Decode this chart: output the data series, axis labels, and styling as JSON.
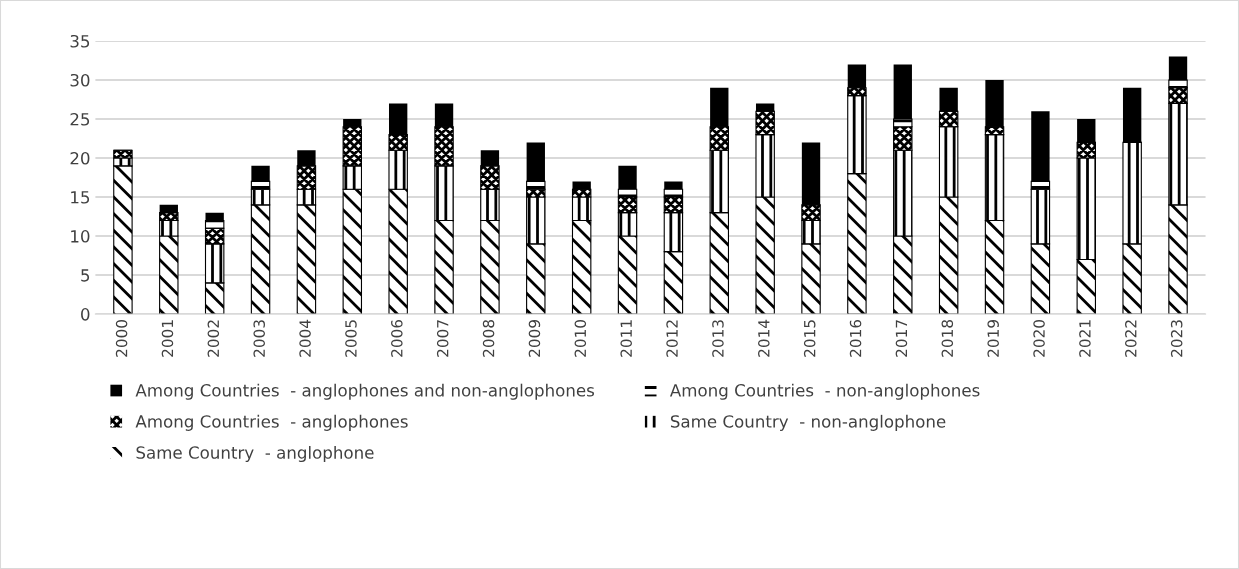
{
  "chart_data": {
    "type": "bar",
    "stacked": true,
    "categories": [
      "2000",
      "2001",
      "2002",
      "2003",
      "2004",
      "2005",
      "2006",
      "2007",
      "2008",
      "2009",
      "2010",
      "2011",
      "2012",
      "2013",
      "2014",
      "2015",
      "2016",
      "2017",
      "2018",
      "2019",
      "2020",
      "2021",
      "2022",
      "2023"
    ],
    "series": [
      {
        "name": "Same Country  - anglophone",
        "color": "#000000",
        "values": [
          19,
          10,
          4,
          14,
          14,
          16,
          16,
          12,
          12,
          9,
          12,
          10,
          8,
          13,
          15,
          9,
          18,
          10,
          15,
          12,
          9,
          7,
          9,
          14
        ]
      },
      {
        "name": "Same Country  - non-anglophone",
        "color": "#000000",
        "values": [
          1,
          2,
          5,
          2,
          2,
          3,
          5,
          7,
          4,
          6,
          3,
          3,
          5,
          8,
          8,
          3,
          10,
          11,
          9,
          11,
          7,
          13,
          13,
          13
        ]
      },
      {
        "name": "Among Countries  - anglophones",
        "color": "#000000",
        "values": [
          1,
          1,
          2,
          0,
          3,
          5,
          2,
          5,
          3,
          1,
          1,
          2,
          2,
          3,
          3,
          2,
          1,
          3,
          2,
          1,
          0,
          2,
          0,
          2
        ]
      },
      {
        "name": "Among Countries  - non-anglophones",
        "color": "#000000",
        "values": [
          0,
          0,
          1,
          1,
          0,
          0,
          0,
          0,
          0,
          1,
          0,
          1,
          1,
          0,
          0,
          0,
          0,
          1,
          0,
          0,
          1,
          0,
          0,
          1
        ]
      },
      {
        "name": "Among Countries  - anglophones and non-anglophones",
        "color": "#000000",
        "values": [
          0,
          1,
          1,
          2,
          2,
          1,
          4,
          3,
          2,
          5,
          1,
          3,
          1,
          5,
          1,
          8,
          3,
          7,
          3,
          6,
          9,
          3,
          7,
          3
        ]
      }
    ],
    "ylim": [
      0,
      35
    ],
    "yticks": [
      0,
      5,
      10,
      15,
      20,
      25,
      30,
      35
    ],
    "grid": "y",
    "legend": "bottom"
  }
}
